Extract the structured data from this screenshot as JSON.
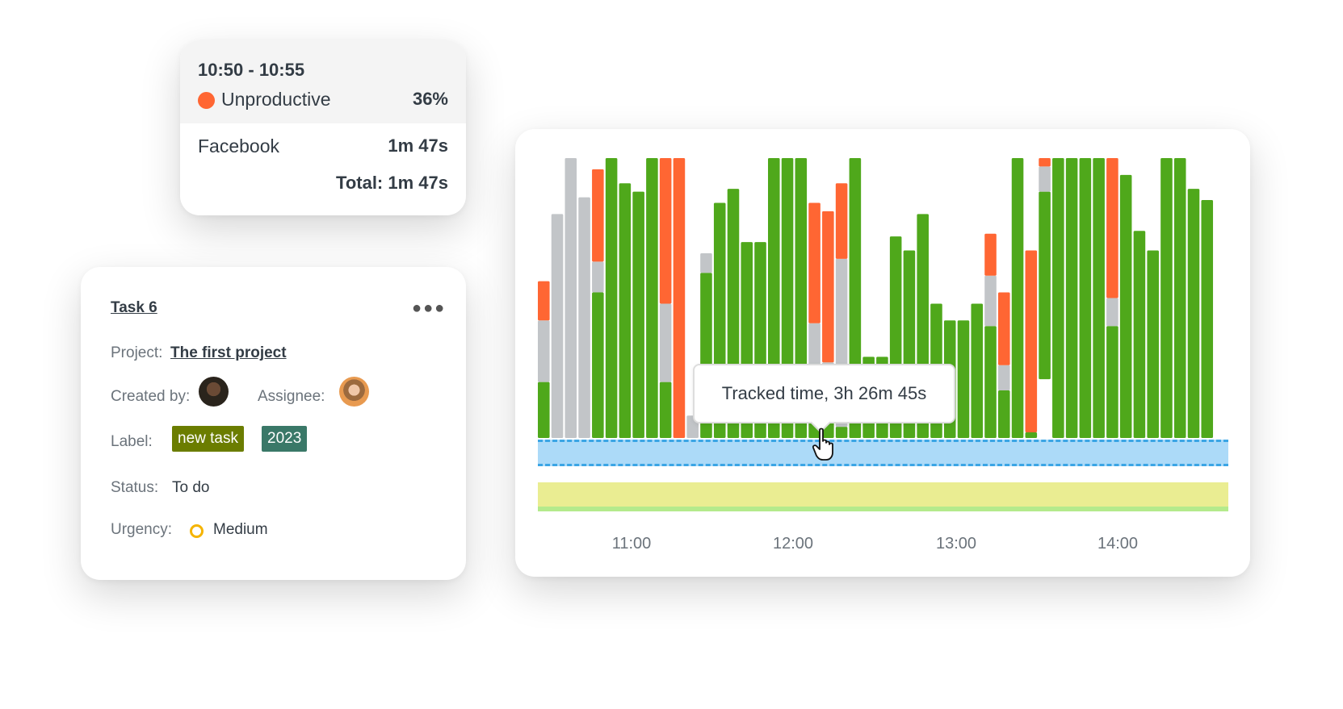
{
  "activity_tooltip": {
    "time_range": "10:50 - 10:55",
    "category": "Unproductive",
    "category_color": "#ff6633",
    "percent": "36%",
    "app": "Facebook",
    "app_time": "1m 47s",
    "total": "Total: 1m 47s"
  },
  "task": {
    "title": "Task 6",
    "more_icon": "more-horizontal-icon",
    "project_label": "Project:",
    "project": "The first project",
    "created_by_label": "Created by:",
    "assignee_label": "Assignee:",
    "label_label": "Label:",
    "labels": [
      {
        "text": "new task",
        "color": "#6b7d00"
      },
      {
        "text": "2023",
        "color": "#3a7868"
      }
    ],
    "status_label": "Status:",
    "status": "To do",
    "urgency_label": "Urgency:",
    "urgency": "Medium",
    "urgency_color": "#f5b400"
  },
  "chart_data": {
    "type": "bar",
    "stacked": true,
    "interval_minutes": 5,
    "colors": {
      "productive": "#4fa81b",
      "neutral": "#c2c5c8",
      "unproductive": "#ff6633",
      "tracked_band": "#acdaf8",
      "timeline_band": "#eaed92"
    },
    "x_ticks": [
      "11:00",
      "12:00",
      "13:00",
      "14:00"
    ],
    "tooltip": "Tracked time, 3h 26m 45s",
    "series_order": [
      "productive",
      "neutral",
      "unproductive"
    ],
    "bars": [
      [
        0.2,
        0.22,
        0.14
      ],
      [
        0,
        0.8,
        0
      ],
      [
        0,
        1.0,
        0
      ],
      [
        0,
        0.86,
        0
      ],
      [
        0.52,
        0.11,
        0.33
      ],
      [
        1.0,
        0,
        0
      ],
      [
        0.91,
        0,
        0
      ],
      [
        0.88,
        0,
        0
      ],
      [
        1.0,
        0,
        0
      ],
      [
        0.2,
        0.28,
        0.52
      ],
      [
        0,
        0,
        1.0
      ],
      [
        0,
        0.08,
        0
      ],
      [
        0.59,
        0.07,
        0
      ],
      [
        0.84,
        0,
        0
      ],
      [
        0.89,
        0,
        0
      ],
      [
        0.7,
        0,
        0
      ],
      [
        0.7,
        0,
        0
      ],
      [
        1.0,
        0,
        0
      ],
      [
        1.0,
        0,
        0
      ],
      [
        1.0,
        0,
        0
      ],
      [
        0.25,
        0.16,
        0.43
      ],
      [
        0.22,
        0.05,
        0.54
      ],
      [
        0.04,
        0.6,
        0.27
      ],
      [
        1.0,
        0,
        0
      ],
      [
        0.29,
        0,
        0
      ],
      [
        0.29,
        0,
        0
      ],
      [
        0.72,
        0,
        0
      ],
      [
        0.67,
        0,
        0
      ],
      [
        0.8,
        0,
        0
      ],
      [
        0.48,
        0,
        0
      ],
      [
        0.42,
        0,
        0
      ],
      [
        0.42,
        0,
        0
      ],
      [
        0.48,
        0,
        0
      ],
      [
        0.4,
        0.18,
        0.15
      ],
      [
        0.17,
        0.09,
        0.26
      ],
      [
        1.0,
        0,
        0
      ],
      [
        0.02,
        0,
        0.65
      ],
      [
        0.67,
        0.09,
        0.03
      ],
      [
        1.0,
        0,
        0
      ],
      [
        1.0,
        0,
        0
      ],
      [
        1.0,
        0,
        0
      ],
      [
        1.0,
        0,
        0
      ],
      [
        0.4,
        0.1,
        0.5
      ],
      [
        0.94,
        0,
        0
      ],
      [
        0.74,
        0,
        0
      ],
      [
        0.67,
        0,
        0
      ],
      [
        1.0,
        0,
        0
      ],
      [
        1.0,
        0,
        0
      ],
      [
        0.89,
        0,
        0
      ],
      [
        0.85,
        0,
        0
      ],
      [
        0,
        0,
        0
      ]
    ],
    "bar_idle_below": {
      "37": 0.21
    }
  }
}
